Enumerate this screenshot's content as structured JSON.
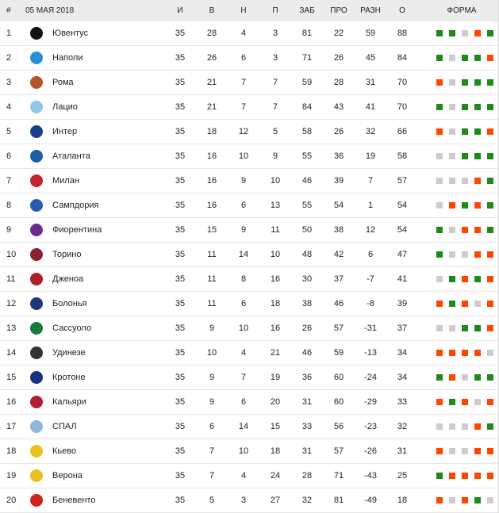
{
  "header": {
    "pos": "#",
    "date": "05 МАЯ 2018",
    "played": "И",
    "won": "В",
    "draw": "Н",
    "lost": "П",
    "gf": "ЗАБ",
    "ga": "ПРО",
    "gd": "РАЗН",
    "pts": "О",
    "form": "ФОРМА"
  },
  "form_colors": {
    "W": "#1e8a1e",
    "D": "#cccccc",
    "L": "#ff4500"
  },
  "rows": [
    {
      "pos": "1",
      "team": "Ювентус",
      "logo": "#111111",
      "p": "35",
      "w": "28",
      "d": "4",
      "l": "3",
      "gf": "81",
      "ga": "22",
      "gd": "59",
      "pts": "88",
      "form": [
        "W",
        "W",
        "D",
        "L",
        "W"
      ]
    },
    {
      "pos": "2",
      "team": "Наполи",
      "logo": "#2a8fd6",
      "p": "35",
      "w": "26",
      "d": "6",
      "l": "3",
      "gf": "71",
      "ga": "26",
      "gd": "45",
      "pts": "84",
      "form": [
        "W",
        "D",
        "W",
        "W",
        "L"
      ]
    },
    {
      "pos": "3",
      "team": "Рома",
      "logo": "#b5522b",
      "p": "35",
      "w": "21",
      "d": "7",
      "l": "7",
      "gf": "59",
      "ga": "28",
      "gd": "31",
      "pts": "70",
      "form": [
        "L",
        "D",
        "W",
        "W",
        "W"
      ]
    },
    {
      "pos": "4",
      "team": "Лацио",
      "logo": "#8fc6e8",
      "p": "35",
      "w": "21",
      "d": "7",
      "l": "7",
      "gf": "84",
      "ga": "43",
      "gd": "41",
      "pts": "70",
      "form": [
        "W",
        "D",
        "W",
        "W",
        "W"
      ]
    },
    {
      "pos": "5",
      "team": "Интер",
      "logo": "#1a3f8a",
      "p": "35",
      "w": "18",
      "d": "12",
      "l": "5",
      "gf": "58",
      "ga": "26",
      "gd": "32",
      "pts": "66",
      "form": [
        "L",
        "D",
        "W",
        "W",
        "L"
      ]
    },
    {
      "pos": "6",
      "team": "Аталанта",
      "logo": "#1a5fa0",
      "p": "35",
      "w": "16",
      "d": "10",
      "l": "9",
      "gf": "55",
      "ga": "36",
      "gd": "19",
      "pts": "58",
      "form": [
        "D",
        "D",
        "W",
        "W",
        "W"
      ]
    },
    {
      "pos": "7",
      "team": "Милан",
      "logo": "#c0262d",
      "p": "35",
      "w": "16",
      "d": "9",
      "l": "10",
      "gf": "46",
      "ga": "39",
      "gd": "7",
      "pts": "57",
      "form": [
        "D",
        "D",
        "D",
        "L",
        "W"
      ]
    },
    {
      "pos": "8",
      "team": "Сампдория",
      "logo": "#2a5bb0",
      "p": "35",
      "w": "16",
      "d": "6",
      "l": "13",
      "gf": "55",
      "ga": "54",
      "gd": "1",
      "pts": "54",
      "form": [
        "D",
        "L",
        "W",
        "L",
        "W"
      ]
    },
    {
      "pos": "9",
      "team": "Фиорентина",
      "logo": "#6b2c91",
      "p": "35",
      "w": "15",
      "d": "9",
      "l": "11",
      "gf": "50",
      "ga": "38",
      "gd": "12",
      "pts": "54",
      "form": [
        "W",
        "D",
        "L",
        "L",
        "W"
      ]
    },
    {
      "pos": "10",
      "team": "Торино",
      "logo": "#8b2030",
      "p": "35",
      "w": "11",
      "d": "14",
      "l": "10",
      "gf": "48",
      "ga": "42",
      "gd": "6",
      "pts": "47",
      "form": [
        "W",
        "D",
        "D",
        "L",
        "L"
      ]
    },
    {
      "pos": "11",
      "team": "Дженоа",
      "logo": "#b0202a",
      "p": "35",
      "w": "11",
      "d": "8",
      "l": "16",
      "gf": "30",
      "ga": "37",
      "gd": "-7",
      "pts": "41",
      "form": [
        "D",
        "W",
        "L",
        "W",
        "L"
      ]
    },
    {
      "pos": "12",
      "team": "Болонья",
      "logo": "#1a3a7a",
      "p": "35",
      "w": "11",
      "d": "6",
      "l": "18",
      "gf": "38",
      "ga": "46",
      "gd": "-8",
      "pts": "39",
      "form": [
        "L",
        "W",
        "L",
        "D",
        "L"
      ]
    },
    {
      "pos": "13",
      "team": "Сассуоло",
      "logo": "#1a7a3a",
      "p": "35",
      "w": "9",
      "d": "10",
      "l": "16",
      "gf": "26",
      "ga": "57",
      "gd": "-31",
      "pts": "37",
      "form": [
        "D",
        "D",
        "W",
        "W",
        "L"
      ]
    },
    {
      "pos": "14",
      "team": "Удинезе",
      "logo": "#333333",
      "p": "35",
      "w": "10",
      "d": "4",
      "l": "21",
      "gf": "46",
      "ga": "59",
      "gd": "-13",
      "pts": "34",
      "form": [
        "L",
        "L",
        "L",
        "L",
        "D"
      ]
    },
    {
      "pos": "15",
      "team": "Кротоне",
      "logo": "#1a2f80",
      "p": "35",
      "w": "9",
      "d": "7",
      "l": "19",
      "gf": "36",
      "ga": "60",
      "gd": "-24",
      "pts": "34",
      "form": [
        "W",
        "L",
        "D",
        "W",
        "W"
      ]
    },
    {
      "pos": "16",
      "team": "Кальяри",
      "logo": "#b02030",
      "p": "35",
      "w": "9",
      "d": "6",
      "l": "20",
      "gf": "31",
      "ga": "60",
      "gd": "-29",
      "pts": "33",
      "form": [
        "L",
        "W",
        "L",
        "D",
        "L"
      ]
    },
    {
      "pos": "17",
      "team": "СПАЛ",
      "logo": "#8fb8d8",
      "p": "35",
      "w": "6",
      "d": "14",
      "l": "15",
      "gf": "33",
      "ga": "56",
      "gd": "-23",
      "pts": "32",
      "form": [
        "D",
        "D",
        "D",
        "L",
        "W"
      ]
    },
    {
      "pos": "18",
      "team": "Кьево",
      "logo": "#e8c020",
      "p": "35",
      "w": "7",
      "d": "10",
      "l": "18",
      "gf": "31",
      "ga": "57",
      "gd": "-26",
      "pts": "31",
      "form": [
        "L",
        "D",
        "D",
        "L",
        "L"
      ]
    },
    {
      "pos": "19",
      "team": "Верона",
      "logo": "#e8c020",
      "p": "35",
      "w": "7",
      "d": "4",
      "l": "24",
      "gf": "28",
      "ga": "71",
      "gd": "-43",
      "pts": "25",
      "form": [
        "W",
        "L",
        "L",
        "L",
        "L"
      ]
    },
    {
      "pos": "20",
      "team": "Беневенто",
      "logo": "#d02020",
      "p": "35",
      "w": "5",
      "d": "3",
      "l": "27",
      "gf": "32",
      "ga": "81",
      "gd": "-49",
      "pts": "18",
      "form": [
        "L",
        "D",
        "L",
        "W",
        "D"
      ]
    }
  ]
}
